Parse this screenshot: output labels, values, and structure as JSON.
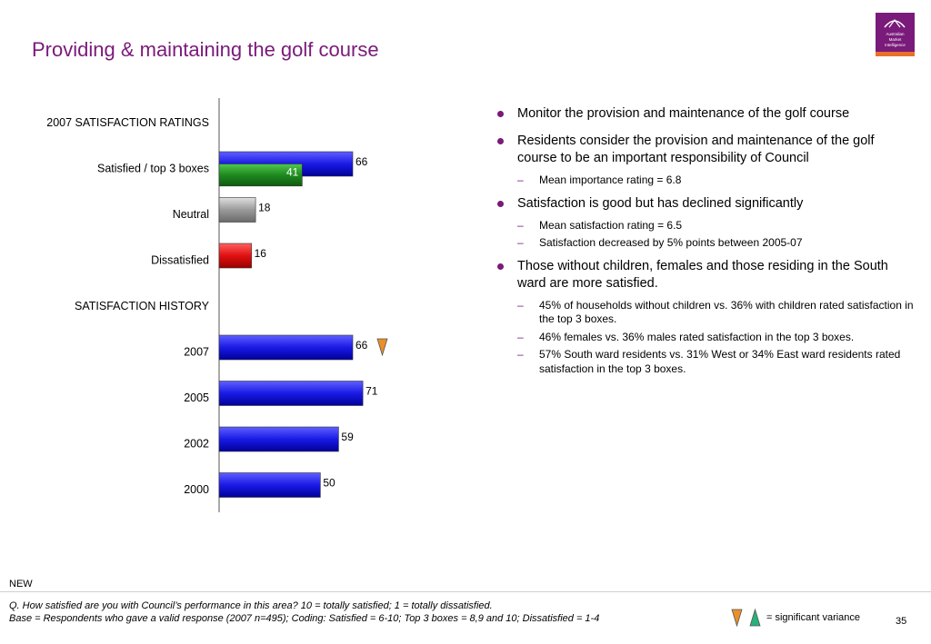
{
  "slide": {
    "title": "Providing & maintaining the golf course",
    "logo_text": [
      "Australian",
      "Market",
      "Intelligence"
    ],
    "page_number": "35"
  },
  "colors": {
    "title": "#7a1a7a",
    "bar_blue": "#1a1ae6",
    "bar_green": "#1f8a1f",
    "bar_grey": "#9a9a9a",
    "bar_red": "#e01010",
    "sig_down": "#e8902a",
    "sig_up": "#2ab07a"
  },
  "chart_data": {
    "type": "bar",
    "orientation": "horizontal",
    "xlim": [
      0,
      100
    ],
    "sections": [
      {
        "heading": "2007 SATISFACTION RATINGS",
        "bars": [
          {
            "label": "Satisfied / top 3 boxes",
            "value": 66,
            "color": "blue",
            "overlay": {
              "value": 41,
              "color": "green"
            }
          },
          {
            "label": "Neutral",
            "value": 18,
            "color": "grey"
          },
          {
            "label": "Dissatisfied",
            "value": 16,
            "color": "red"
          }
        ]
      },
      {
        "heading": "SATISFACTION HISTORY",
        "bars": [
          {
            "label": "2007",
            "value": 66,
            "color": "blue",
            "significance": "down"
          },
          {
            "label": "2005",
            "value": 71,
            "color": "blue"
          },
          {
            "label": "2002",
            "value": 59,
            "color": "blue"
          },
          {
            "label": "2000",
            "value": 50,
            "color": "blue"
          }
        ]
      }
    ]
  },
  "bullets": [
    {
      "text": "Monitor the provision and maintenance of the golf course",
      "subs": []
    },
    {
      "text": "Residents consider the provision and maintenance of the golf course to be an important responsibility of Council",
      "subs": [
        "Mean importance rating = 6.8"
      ]
    },
    {
      "text": "Satisfaction is good but has declined significantly",
      "subs": [
        "Mean satisfaction rating = 6.5",
        "Satisfaction decreased by 5% points between 2005-07"
      ]
    },
    {
      "text": "Those without children, females and those residing in the South ward are more satisfied.",
      "subs": [
        "45% of households without children vs. 36% with children rated satisfaction in the top 3 boxes.",
        "46% females vs. 36% males rated satisfaction in the top 3 boxes.",
        "57% South ward residents vs. 31% West or 34% East ward residents rated satisfaction in the top 3 boxes."
      ]
    }
  ],
  "footer": {
    "new_label": "NEW",
    "question": "Q. How satisfied are you with Council’s performance in this area? 10 = totally satisfied; 1 = totally dissatisfied.",
    "base": "Base = Respondents who gave a valid response (2007 n=495); Coding: Satisfied = 6-10; Top 3 boxes = 8,9 and 10; Dissatisfied = 1-4",
    "legend_text": "= significant variance"
  }
}
